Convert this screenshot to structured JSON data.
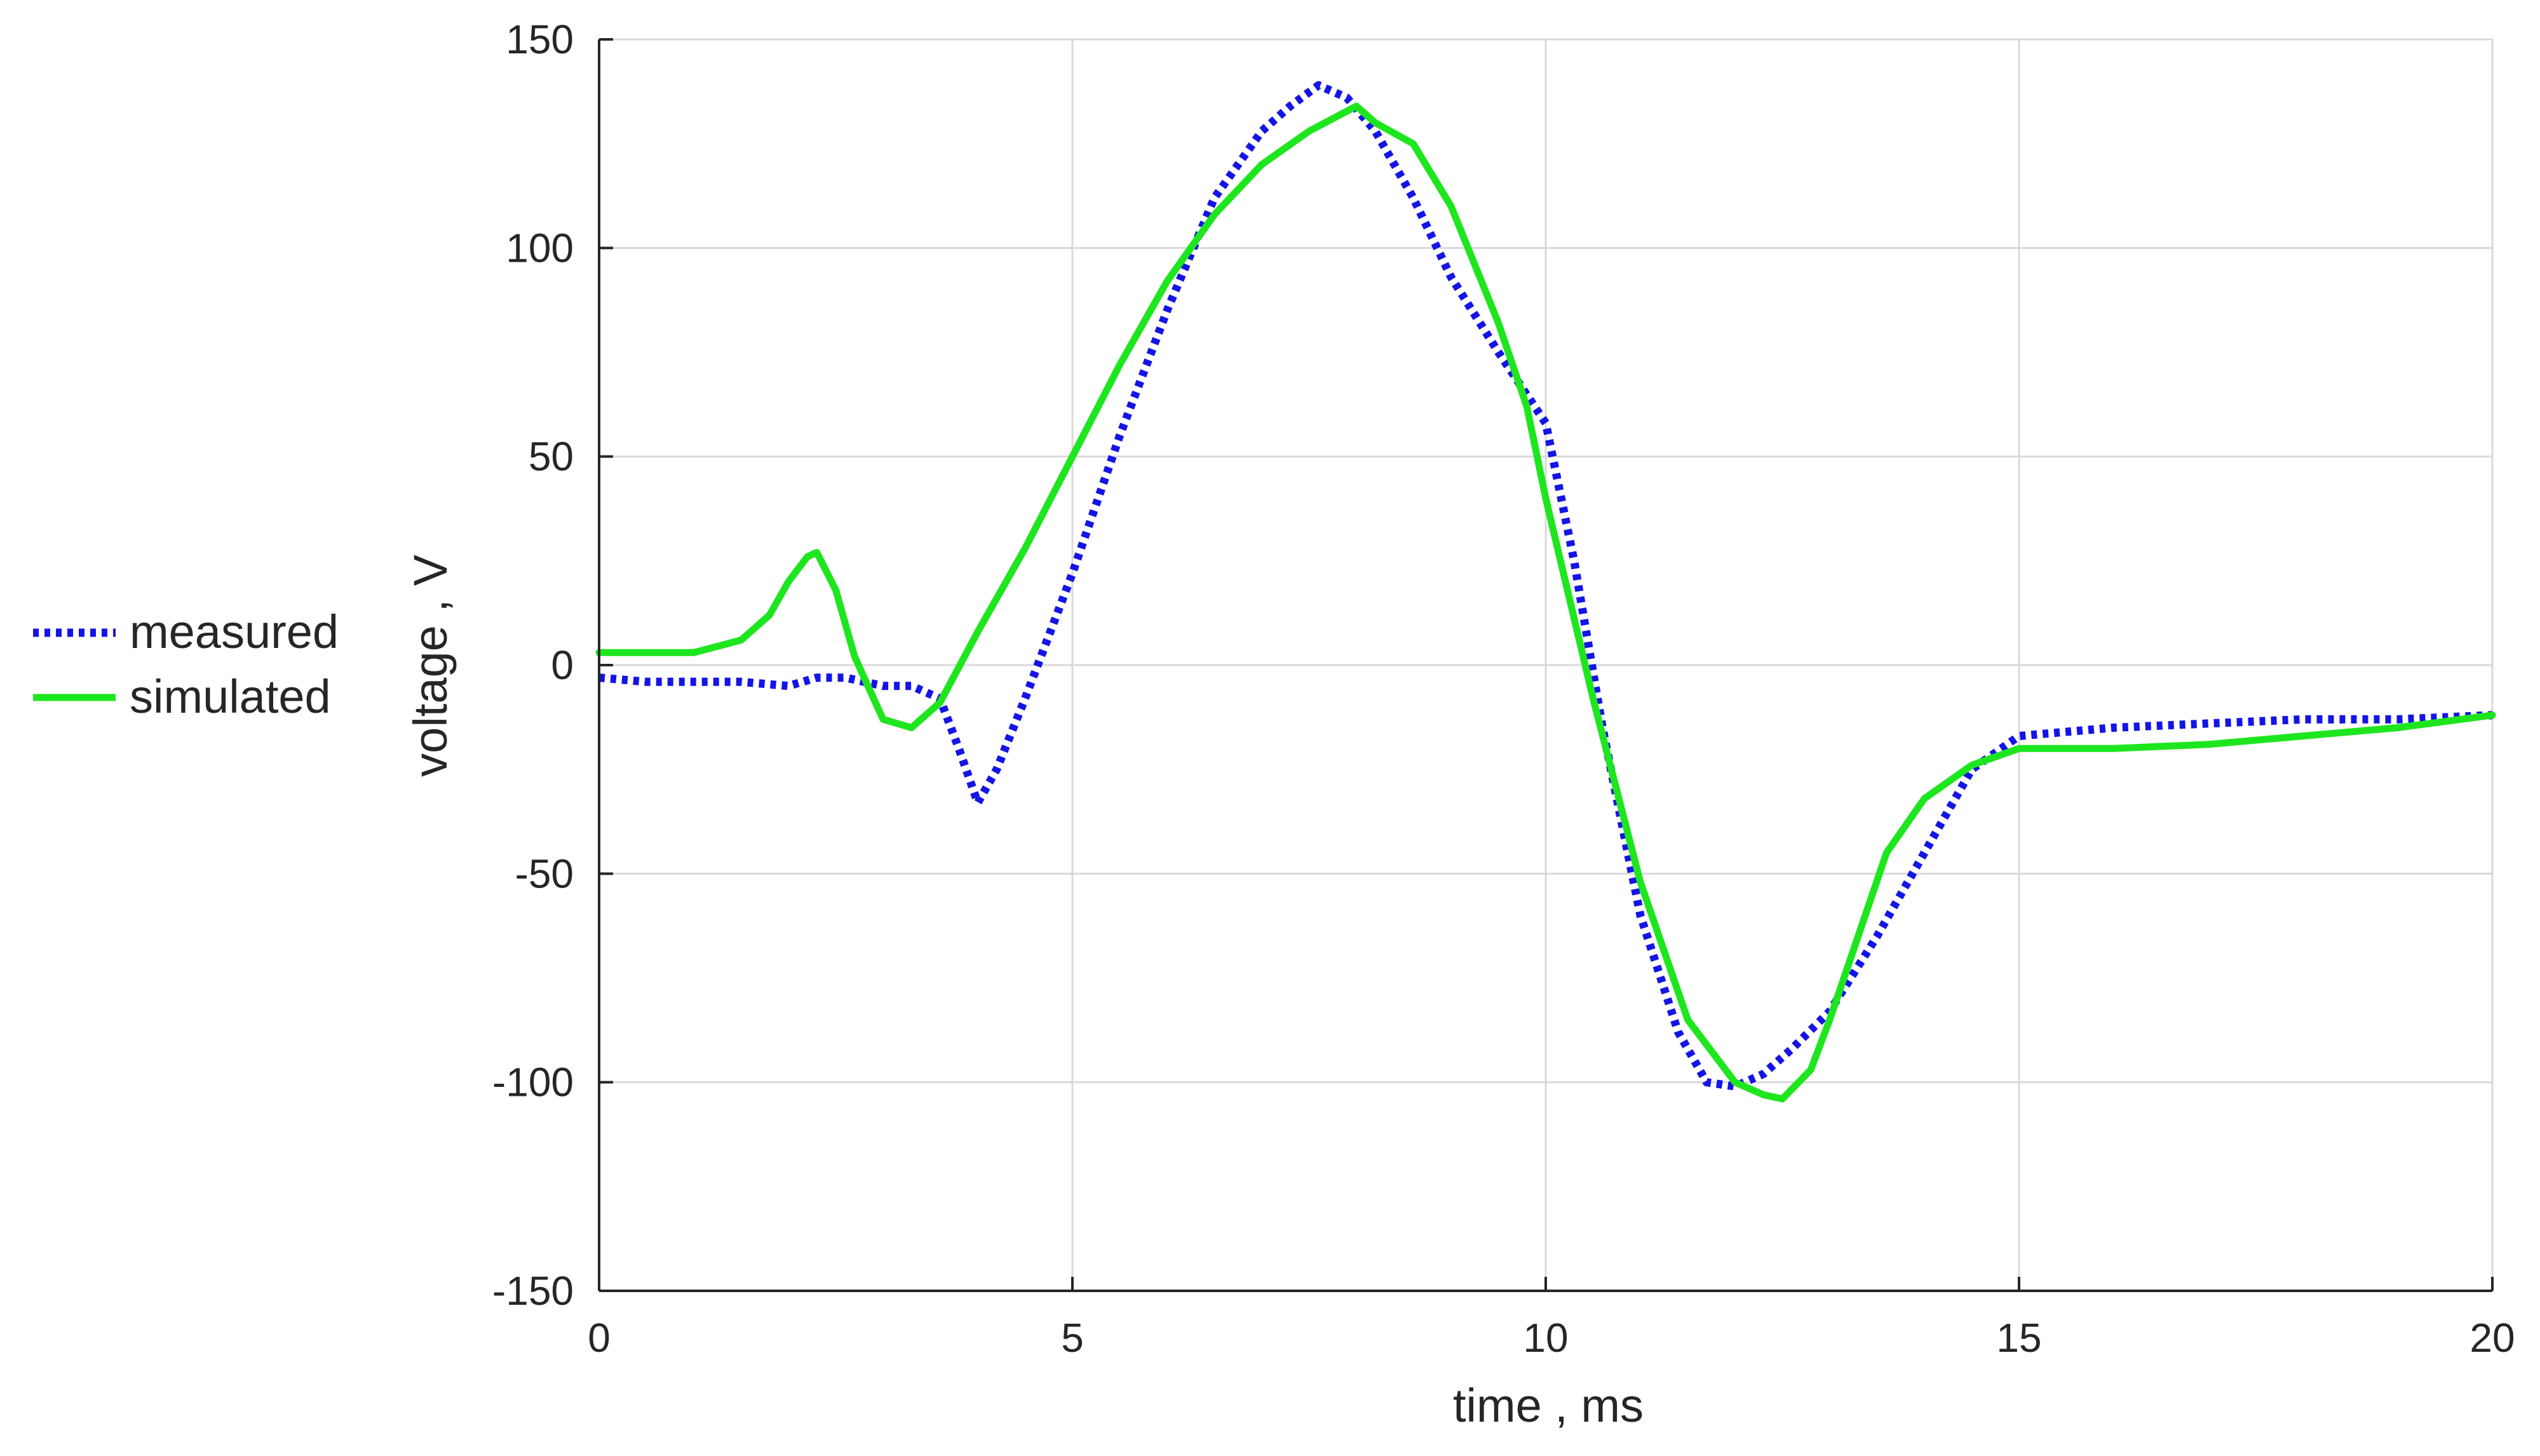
{
  "chart_data": {
    "type": "line",
    "title": "",
    "xlabel": "time , ms",
    "ylabel": "voltage , V",
    "xlim": [
      0,
      20
    ],
    "ylim": [
      -150,
      150
    ],
    "xticks": [
      0,
      5,
      10,
      15,
      20
    ],
    "yticks": [
      -150,
      -100,
      -50,
      0,
      50,
      100,
      150
    ],
    "grid": true,
    "legend": "left",
    "series": [
      {
        "name": "measured",
        "style": "dotted",
        "color": "#1414e6",
        "x": [
          0,
          0.5,
          1.0,
          1.5,
          2.0,
          2.3,
          2.6,
          3.0,
          3.3,
          3.6,
          3.8,
          4.0,
          4.2,
          4.5,
          5.0,
          5.5,
          6.0,
          6.5,
          7.0,
          7.3,
          7.6,
          7.9,
          8.2,
          8.6,
          9.0,
          9.5,
          10.0,
          10.3,
          10.6,
          11.0,
          11.4,
          11.7,
          12.0,
          12.3,
          12.6,
          13.0,
          13.5,
          14.0,
          14.5,
          15.0,
          16.0,
          17.0,
          18.0,
          19.0,
          20.0
        ],
        "y": [
          -3,
          -4,
          -4,
          -4,
          -5,
          -3,
          -3,
          -5,
          -5,
          -8,
          -20,
          -33,
          -25,
          -8,
          22,
          55,
          85,
          112,
          128,
          134,
          139,
          136,
          128,
          112,
          93,
          75,
          58,
          25,
          -15,
          -60,
          -88,
          -100,
          -101,
          -98,
          -92,
          -83,
          -65,
          -45,
          -25,
          -17,
          -15,
          -14,
          -13,
          -13,
          -12
        ]
      },
      {
        "name": "simulated",
        "style": "solid",
        "color": "#1ee61e",
        "x": [
          0,
          0.5,
          1.0,
          1.5,
          1.8,
          2.0,
          2.2,
          2.3,
          2.5,
          2.7,
          3.0,
          3.3,
          3.6,
          4.0,
          4.5,
          5.0,
          5.5,
          6.0,
          6.5,
          7.0,
          7.5,
          8.0,
          8.2,
          8.6,
          9.0,
          9.5,
          9.8,
          10.0,
          10.5,
          11.0,
          11.5,
          12.0,
          12.3,
          12.5,
          12.8,
          13.0,
          13.3,
          13.6,
          14.0,
          14.5,
          15.0,
          16.0,
          17.0,
          18.0,
          19.0,
          20.0
        ],
        "y": [
          3,
          3,
          3,
          6,
          12,
          20,
          26,
          27,
          18,
          2,
          -13,
          -15,
          -9,
          8,
          28,
          50,
          72,
          92,
          108,
          120,
          128,
          134,
          130,
          125,
          110,
          82,
          62,
          40,
          -8,
          -52,
          -85,
          -100,
          -103,
          -104,
          -97,
          -85,
          -65,
          -45,
          -32,
          -24,
          -20,
          -20,
          -19,
          -17,
          -15,
          -12
        ]
      }
    ]
  }
}
